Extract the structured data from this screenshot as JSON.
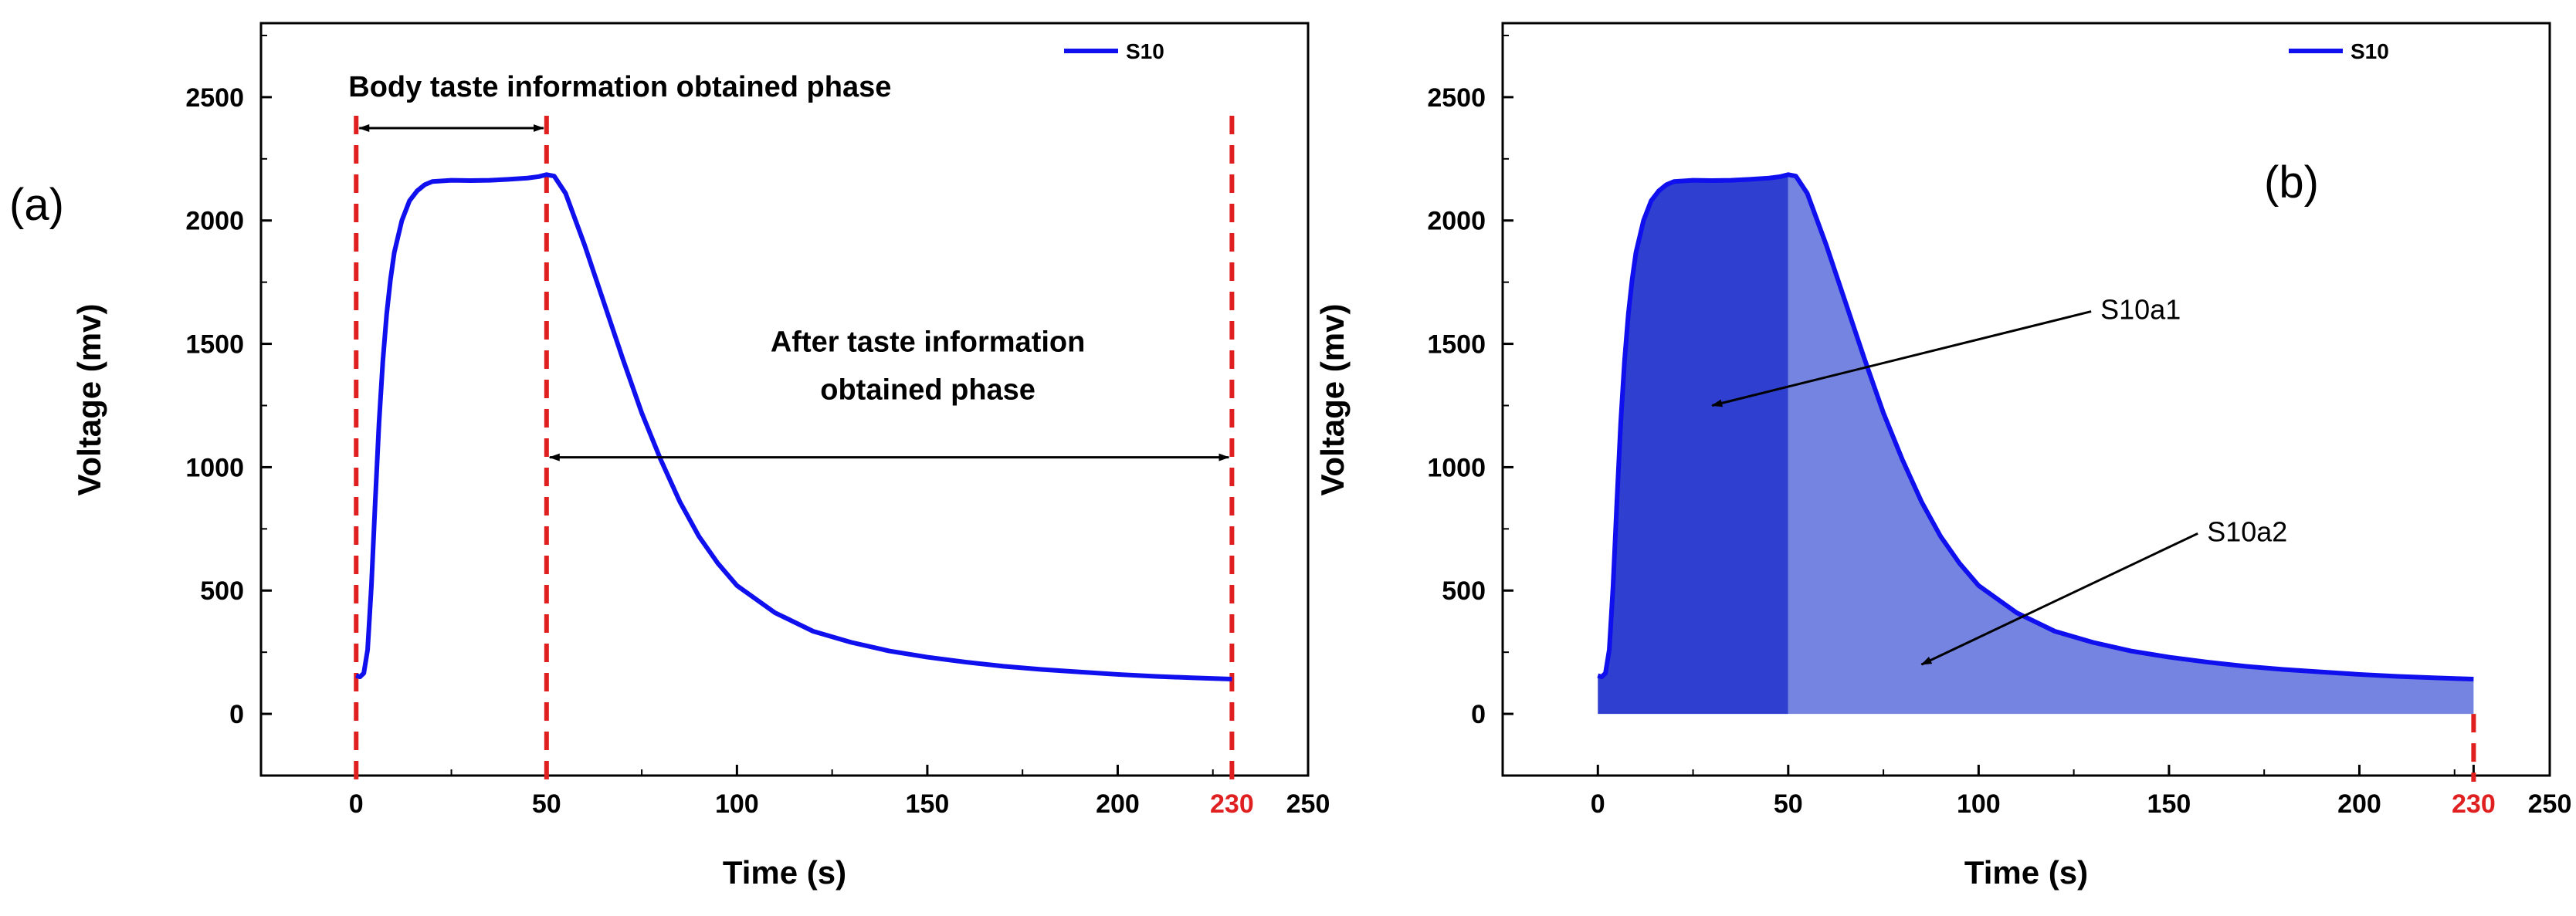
{
  "colors": {
    "series": "#1010ee",
    "marker": "#e02020",
    "area1": "#2f3fd0",
    "area2": "#7484e0",
    "axis": "#000000"
  },
  "chart_data": [
    {
      "panel_label": "(a)",
      "type": "line",
      "xlabel": "Time (s)",
      "ylabel": "Voltage (mv)",
      "xlim": [
        -25,
        250
      ],
      "ylim": [
        -250,
        2800
      ],
      "x_ticks": [
        0,
        50,
        100,
        150,
        200,
        230,
        250
      ],
      "x_tick_labels": [
        "0",
        "50",
        "100",
        "150",
        "200",
        "230",
        "250"
      ],
      "highlight_ticks": [
        "230"
      ],
      "y_ticks": [
        0,
        500,
        1000,
        1500,
        2000,
        2500
      ],
      "y_tick_labels": [
        "0",
        "500",
        "1000",
        "1500",
        "2000",
        "2500"
      ],
      "legend": {
        "label": "S10",
        "position": "top-right"
      },
      "vlines": [
        0,
        50,
        230
      ],
      "series": [
        {
          "name": "S10",
          "points": [
            [
              0,
              155
            ],
            [
              1,
              150
            ],
            [
              2,
              165
            ],
            [
              3,
              260
            ],
            [
              4,
              520
            ],
            [
              5,
              860
            ],
            [
              6,
              1180
            ],
            [
              7,
              1430
            ],
            [
              8,
              1620
            ],
            [
              9,
              1760
            ],
            [
              10,
              1870
            ],
            [
              12,
              2000
            ],
            [
              14,
              2080
            ],
            [
              16,
              2120
            ],
            [
              18,
              2145
            ],
            [
              20,
              2158
            ],
            [
              25,
              2163
            ],
            [
              30,
              2162
            ],
            [
              35,
              2163
            ],
            [
              40,
              2167
            ],
            [
              45,
              2172
            ],
            [
              48,
              2178
            ],
            [
              50,
              2186
            ],
            [
              52,
              2180
            ],
            [
              55,
              2110
            ],
            [
              60,
              1900
            ],
            [
              65,
              1670
            ],
            [
              70,
              1440
            ],
            [
              75,
              1220
            ],
            [
              80,
              1030
            ],
            [
              85,
              860
            ],
            [
              90,
              720
            ],
            [
              95,
              610
            ],
            [
              100,
              520
            ],
            [
              110,
              410
            ],
            [
              120,
              335
            ],
            [
              130,
              290
            ],
            [
              140,
              255
            ],
            [
              150,
              230
            ],
            [
              160,
              210
            ],
            [
              170,
              193
            ],
            [
              180,
              180
            ],
            [
              190,
              170
            ],
            [
              200,
              160
            ],
            [
              210,
              152
            ],
            [
              220,
              146
            ],
            [
              230,
              141
            ]
          ]
        }
      ],
      "annotations": [
        {
          "text": "Body taste information obtained phase",
          "from": 0,
          "to": 50,
          "y": 2350
        },
        {
          "text": [
            "After taste information",
            "obtained phase"
          ],
          "from": 50,
          "to": 230,
          "y": 1040
        }
      ]
    },
    {
      "panel_label": "(b)",
      "type": "area",
      "xlabel": "Time (s)",
      "ylabel": "Voltage (mv)",
      "xlim": [
        -25,
        250
      ],
      "ylim": [
        -250,
        2800
      ],
      "x_ticks": [
        0,
        50,
        100,
        150,
        200,
        230,
        250
      ],
      "x_tick_labels": [
        "0",
        "50",
        "100",
        "150",
        "200",
        "230",
        "250"
      ],
      "highlight_ticks": [
        "230"
      ],
      "y_ticks": [
        0,
        500,
        1000,
        1500,
        2000,
        2500
      ],
      "y_tick_labels": [
        "0",
        "500",
        "1000",
        "1500",
        "2000",
        "2500"
      ],
      "legend": {
        "label": "S10",
        "position": "top-right"
      },
      "vlines": [
        230
      ],
      "split_x": 50,
      "regions": [
        {
          "label": "S10a1",
          "range": [
            0,
            50
          ]
        },
        {
          "label": "S10a2",
          "range": [
            50,
            230
          ]
        }
      ],
      "region_labels": [
        {
          "text": "S10a1",
          "text_at": [
            132,
            1600
          ],
          "arrow_to": [
            30,
            1250
          ]
        },
        {
          "text": "S10a2",
          "text_at": [
            160,
            700
          ],
          "arrow_to": [
            85,
            200
          ]
        }
      ]
    }
  ]
}
